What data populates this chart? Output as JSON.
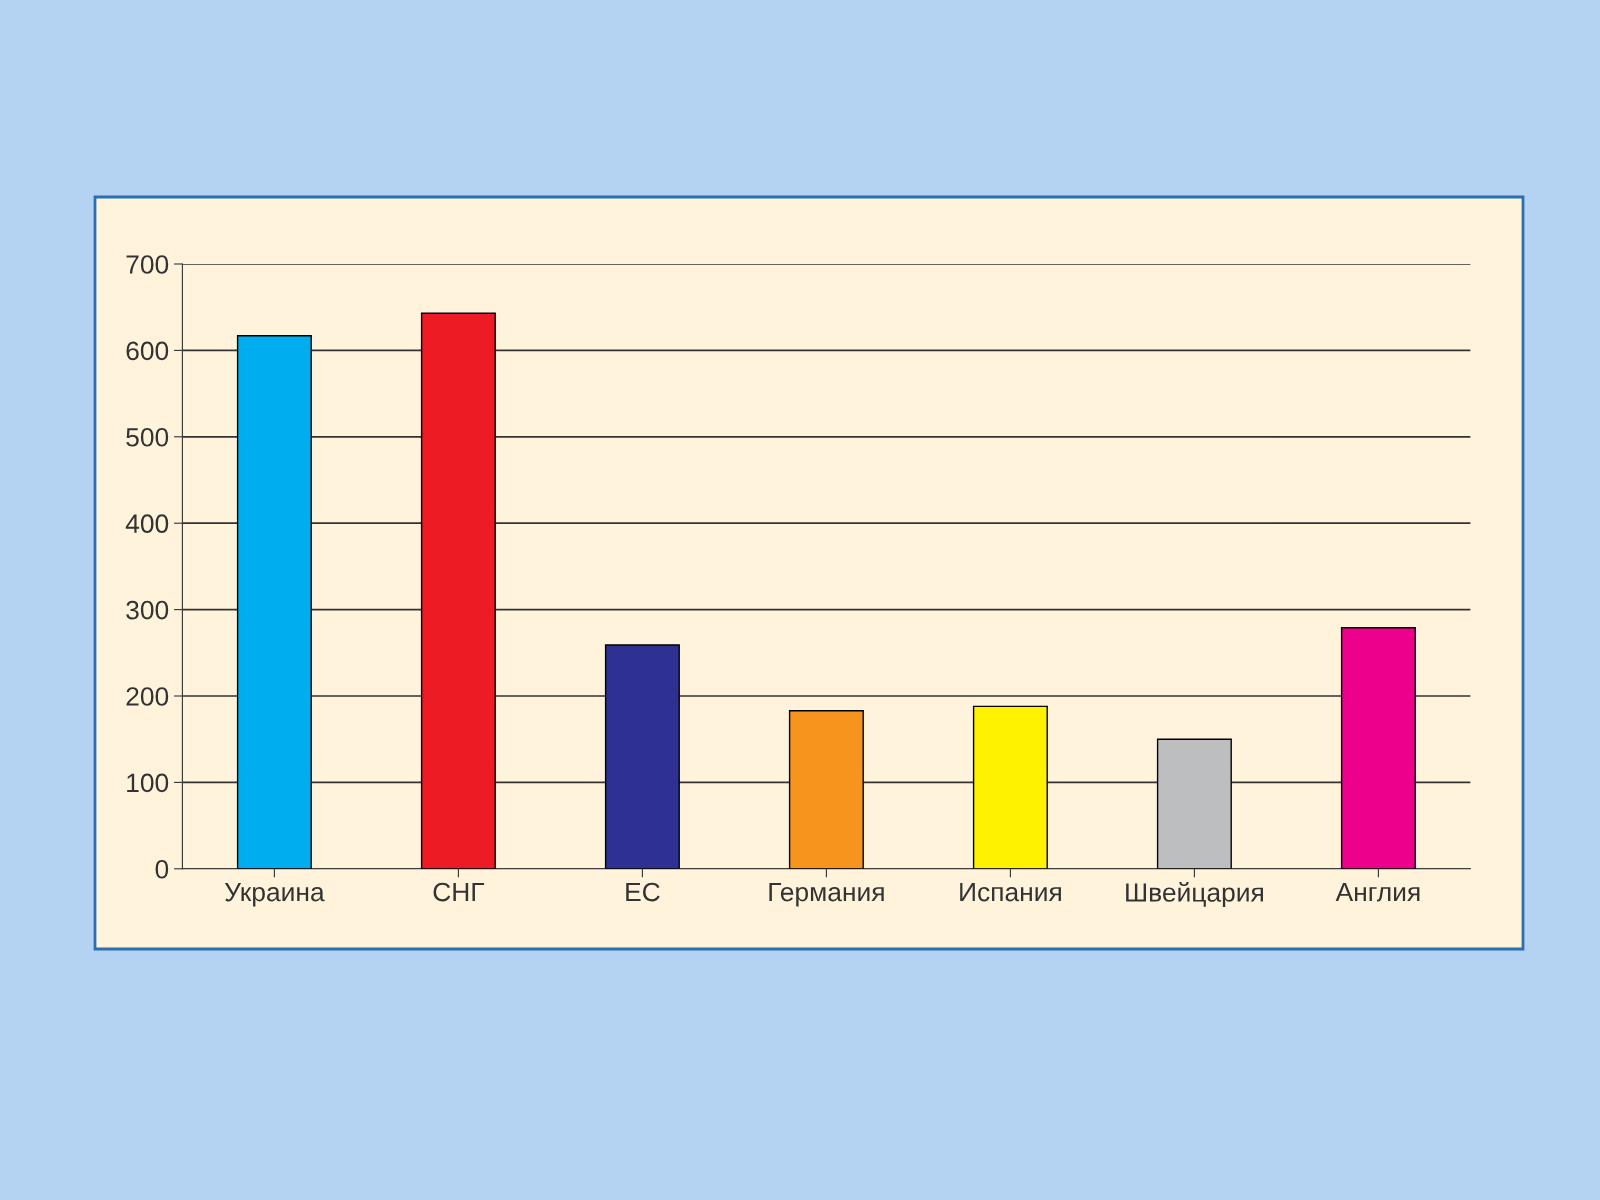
{
  "chart_data": {
    "type": "bar",
    "categories": [
      "Украина",
      "СНГ",
      "ЕС",
      "Германия",
      "Испания",
      "Швейцария",
      "Англия"
    ],
    "values": [
      617,
      643,
      259,
      183,
      188,
      150,
      279
    ],
    "colors": [
      "#00aeef",
      "#ed1c24",
      "#2e3192",
      "#f7941d",
      "#fff200",
      "#bcbec0",
      "#ec008c"
    ],
    "ylim": [
      0,
      700
    ],
    "yticks": [
      0,
      100,
      200,
      300,
      400,
      500,
      600,
      700
    ],
    "grid": "y",
    "legend": false
  }
}
